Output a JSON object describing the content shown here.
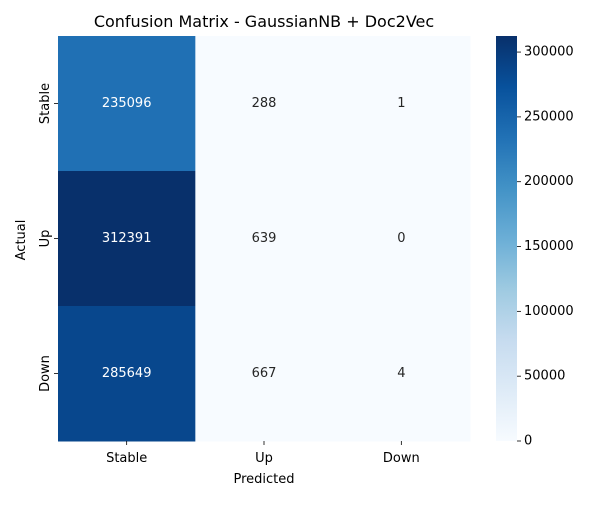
{
  "chart_data": {
    "type": "heatmap",
    "title": "Confusion Matrix - GaussianNB + Doc2Vec",
    "xlabel": "Predicted",
    "ylabel": "Actual",
    "x_categories": [
      "Stable",
      "Up",
      "Down"
    ],
    "y_categories": [
      "Stable",
      "Up",
      "Down"
    ],
    "values": [
      [
        235096,
        288,
        1
      ],
      [
        312391,
        639,
        0
      ],
      [
        285649,
        667,
        4
      ]
    ],
    "colormap": "Blues",
    "colorbar": {
      "min": 0,
      "max": 312391,
      "ticks": [
        0,
        50000,
        100000,
        150000,
        200000,
        250000,
        300000
      ]
    },
    "grid": false,
    "legend": "colorbar-right"
  }
}
